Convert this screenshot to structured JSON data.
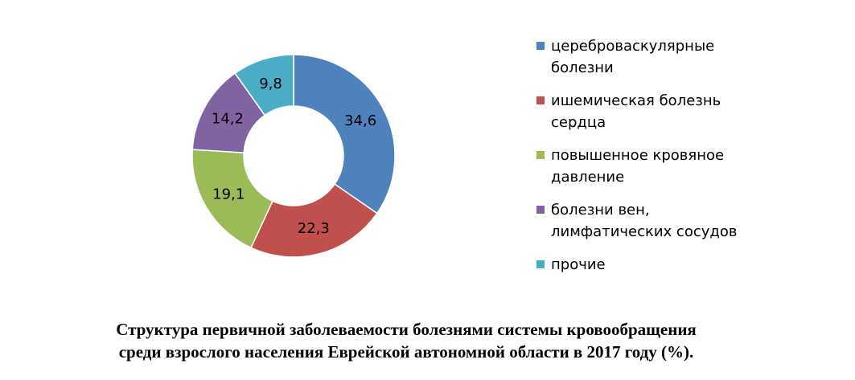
{
  "chart_data": {
    "type": "pie",
    "variant": "donut",
    "categories": [
      "цереброваскулярные болезни",
      "ишемическая болезнь сердца",
      "повышенное кровяное давление",
      "болезни вен, лимфатических сосудов",
      "прочие"
    ],
    "values": [
      34.6,
      22.3,
      19.1,
      14.2,
      9.8
    ],
    "value_labels": [
      "34,6",
      "22,3",
      "19,1",
      "14,2",
      "9,8"
    ],
    "colors": [
      "#4F81BD",
      "#C0504D",
      "#9BBB59",
      "#8064A2",
      "#4BACC6"
    ],
    "legend_position": "right",
    "title": "Структура первичной заболеваемости болезнями системы кровообращения среди взрослого населения Еврейской автономной области в 2017 году (%)."
  },
  "legend": {
    "items": [
      "цереброваскулярные болезни",
      "ишемическая болезнь сердца",
      "повышенное кровяное давление",
      "болезни вен, лимфатических сосудов",
      "прочие"
    ]
  },
  "caption": {
    "line1": "Структура первичной заболеваемости болезнями системы кровообращения",
    "line2": "среди взрослого населения Еврейской автономной области в 2017 году (%)."
  }
}
